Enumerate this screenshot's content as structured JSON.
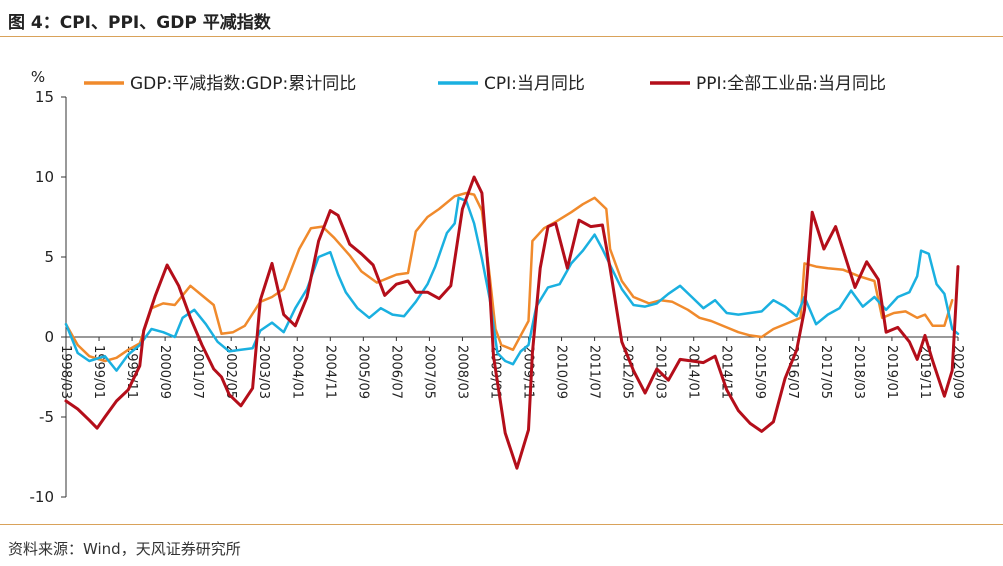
{
  "header": {
    "title": "图 4：CPI、PPI、GDP 平减指数"
  },
  "footer": {
    "source": "资料来源：Wind，天风证券研究所"
  },
  "chart_data": {
    "type": "line",
    "title": "",
    "ylabel": "%",
    "ylim": [
      -10,
      15
    ],
    "yticks": [
      15,
      10,
      5,
      0,
      -5,
      -10
    ],
    "xlim": [
      1998.0,
      2020.95
    ],
    "xtick_labels": [
      "1998/03",
      "1999/01",
      "1999/11",
      "2000/09",
      "2001/07",
      "2002/05",
      "2003/03",
      "2004/01",
      "2004/11",
      "2005/09",
      "2006/07",
      "2007/05",
      "2008/03",
      "2009/01",
      "2009/11",
      "2010/09",
      "2011/07",
      "2012/05",
      "2013/03",
      "2014/01",
      "2014/11",
      "2015/09",
      "2016/07",
      "2017/05",
      "2018/03",
      "2019/01",
      "2019/11",
      "2020/09"
    ],
    "grid": false,
    "legend_position": "top",
    "series": [
      {
        "name": "GDP:平减指数:GDP:累计同比",
        "color": "#f08a2c",
        "x": [
          1998.0,
          1998.3,
          1998.6,
          1999.0,
          1999.3,
          1999.6,
          1999.9,
          2000.2,
          2000.5,
          2000.8,
          2001.2,
          2001.5,
          2001.8,
          2002.0,
          2002.3,
          2002.6,
          2003.0,
          2003.3,
          2003.6,
          2004.0,
          2004.3,
          2004.6,
          2004.9,
          2005.3,
          2005.6,
          2006.0,
          2006.3,
          2006.5,
          2006.8,
          2007.0,
          2007.3,
          2007.6,
          2008.0,
          2008.3,
          2008.5,
          2008.7,
          2008.9,
          2009.05,
          2009.2,
          2009.5,
          2009.9,
          2010.0,
          2010.3,
          2010.6,
          2011.0,
          2011.3,
          2011.6,
          2011.9,
          2012.0,
          2012.3,
          2012.6,
          2013.0,
          2013.3,
          2013.6,
          2014.0,
          2014.3,
          2014.6,
          2015.0,
          2015.3,
          2015.6,
          2015.9,
          2016.2,
          2016.6,
          2016.9,
          2017.0,
          2017.3,
          2017.6,
          2018.0,
          2018.4,
          2018.8,
          2019.0,
          2019.3,
          2019.6,
          2019.9,
          2020.1,
          2020.3,
          2020.6,
          2020.8
        ],
        "values": [
          0.8,
          -0.5,
          -1.2,
          -1.5,
          -1.3,
          -0.8,
          -0.4,
          1.8,
          2.1,
          2.0,
          3.2,
          2.6,
          2.0,
          0.2,
          0.3,
          0.7,
          2.2,
          2.5,
          3.0,
          5.5,
          6.8,
          6.9,
          6.2,
          5.1,
          4.1,
          3.4,
          3.7,
          3.9,
          4.0,
          6.6,
          7.5,
          8.0,
          8.8,
          9.0,
          8.9,
          7.9,
          3.8,
          0.5,
          -0.5,
          -0.8,
          1.0,
          6.0,
          6.8,
          7.2,
          7.8,
          8.3,
          8.7,
          8.0,
          5.5,
          3.5,
          2.5,
          2.1,
          2.3,
          2.2,
          1.7,
          1.2,
          1.0,
          0.6,
          0.3,
          0.1,
          0.0,
          0.5,
          0.9,
          1.2,
          4.6,
          4.4,
          4.3,
          4.2,
          3.8,
          3.5,
          1.2,
          1.5,
          1.6,
          1.2,
          1.4,
          0.7,
          0.7,
          2.3
        ]
      },
      {
        "name": "CPI:当月同比",
        "color": "#1ab0e0",
        "x": [
          1998.0,
          1998.3,
          1998.6,
          1999.0,
          1999.3,
          1999.6,
          1999.9,
          2000.2,
          2000.5,
          2000.8,
          2001.0,
          2001.3,
          2001.6,
          2001.9,
          2002.2,
          2002.5,
          2002.8,
          2003.0,
          2003.3,
          2003.6,
          2003.9,
          2004.2,
          2004.5,
          2004.8,
          2005.0,
          2005.2,
          2005.5,
          2005.8,
          2006.1,
          2006.4,
          2006.7,
          2007.0,
          2007.3,
          2007.5,
          2007.8,
          2008.0,
          2008.1,
          2008.3,
          2008.5,
          2008.7,
          2008.9,
          2009.1,
          2009.3,
          2009.5,
          2009.7,
          2009.9,
          2010.1,
          2010.4,
          2010.7,
          2011.0,
          2011.3,
          2011.6,
          2011.8,
          2012.0,
          2012.3,
          2012.6,
          2012.9,
          2013.2,
          2013.5,
          2013.8,
          2014.1,
          2014.4,
          2014.7,
          2015.0,
          2015.3,
          2015.6,
          2015.9,
          2016.2,
          2016.5,
          2016.8,
          2017.0,
          2017.3,
          2017.6,
          2017.9,
          2018.2,
          2018.5,
          2018.8,
          2019.1,
          2019.4,
          2019.7,
          2019.9,
          2020.0,
          2020.2,
          2020.4,
          2020.6,
          2020.8,
          2020.95
        ],
        "values": [
          0.8,
          -1.0,
          -1.5,
          -1.2,
          -2.1,
          -1.1,
          -0.5,
          0.5,
          0.3,
          0.0,
          1.2,
          1.7,
          0.8,
          -0.3,
          -0.9,
          -0.8,
          -0.7,
          0.4,
          0.9,
          0.3,
          1.8,
          3.0,
          5.0,
          5.3,
          3.9,
          2.8,
          1.8,
          1.2,
          1.8,
          1.4,
          1.3,
          2.2,
          3.3,
          4.4,
          6.5,
          7.1,
          8.7,
          8.5,
          7.1,
          4.9,
          2.4,
          -1.0,
          -1.5,
          -1.7,
          -0.9,
          -0.5,
          1.9,
          3.1,
          3.3,
          4.6,
          5.4,
          6.4,
          5.5,
          4.5,
          3.0,
          2.0,
          1.9,
          2.1,
          2.7,
          3.2,
          2.5,
          1.8,
          2.3,
          1.5,
          1.4,
          1.5,
          1.6,
          2.3,
          1.9,
          1.3,
          2.5,
          0.8,
          1.4,
          1.8,
          2.9,
          1.9,
          2.5,
          1.7,
          2.5,
          2.8,
          3.8,
          5.4,
          5.2,
          3.3,
          2.7,
          0.5,
          0.2
        ]
      },
      {
        "name": "PPI:全部工业品:当月同比",
        "color": "#b40e1a",
        "x": [
          1998.0,
          1998.3,
          1998.6,
          1998.8,
          1999.0,
          1999.3,
          1999.6,
          1999.9,
          2000.0,
          2000.3,
          2000.6,
          2000.9,
          2001.2,
          2001.5,
          2001.8,
          2002.0,
          2002.2,
          2002.5,
          2002.8,
          2003.0,
          2003.3,
          2003.6,
          2003.9,
          2004.2,
          2004.5,
          2004.8,
          2005.0,
          2005.3,
          2005.6,
          2005.9,
          2006.2,
          2006.5,
          2006.8,
          2007.0,
          2007.3,
          2007.6,
          2007.9,
          2008.2,
          2008.5,
          2008.7,
          2008.9,
          2009.0,
          2009.3,
          2009.6,
          2009.9,
          2010.0,
          2010.2,
          2010.4,
          2010.6,
          2010.9,
          2011.2,
          2011.5,
          2011.8,
          2012.0,
          2012.3,
          2012.6,
          2012.9,
          2013.2,
          2013.5,
          2013.8,
          2014.1,
          2014.4,
          2014.7,
          2015.0,
          2015.3,
          2015.6,
          2015.9,
          2016.2,
          2016.5,
          2016.8,
          2017.0,
          2017.2,
          2017.5,
          2017.8,
          2018.0,
          2018.3,
          2018.6,
          2018.9,
          2019.1,
          2019.4,
          2019.7,
          2019.9,
          2020.1,
          2020.3,
          2020.6,
          2020.8,
          2020.95
        ],
        "values": [
          -4.0,
          -4.5,
          -5.2,
          -5.7,
          -5.0,
          -4.0,
          -3.3,
          -1.8,
          0.4,
          2.6,
          4.5,
          3.2,
          1.2,
          -0.5,
          -2.0,
          -2.5,
          -3.6,
          -4.3,
          -3.2,
          2.3,
          4.6,
          1.4,
          0.7,
          2.5,
          6.0,
          7.9,
          7.6,
          5.8,
          5.2,
          4.5,
          2.6,
          3.3,
          3.5,
          2.8,
          2.8,
          2.4,
          3.2,
          8.0,
          10.0,
          9.0,
          3.0,
          -1.2,
          -6.0,
          -8.2,
          -5.8,
          -1.0,
          4.3,
          6.9,
          7.1,
          4.3,
          7.3,
          6.9,
          7.0,
          4.3,
          -0.3,
          -2.1,
          -3.5,
          -2.0,
          -2.7,
          -1.4,
          -1.5,
          -1.6,
          -1.2,
          -3.3,
          -4.6,
          -5.4,
          -5.9,
          -5.3,
          -2.6,
          -0.8,
          1.7,
          7.8,
          5.5,
          6.9,
          5.4,
          3.1,
          4.7,
          3.6,
          0.3,
          0.6,
          -0.3,
          -1.4,
          0.1,
          -1.5,
          -3.7,
          -2.1,
          4.4
        ]
      }
    ]
  }
}
